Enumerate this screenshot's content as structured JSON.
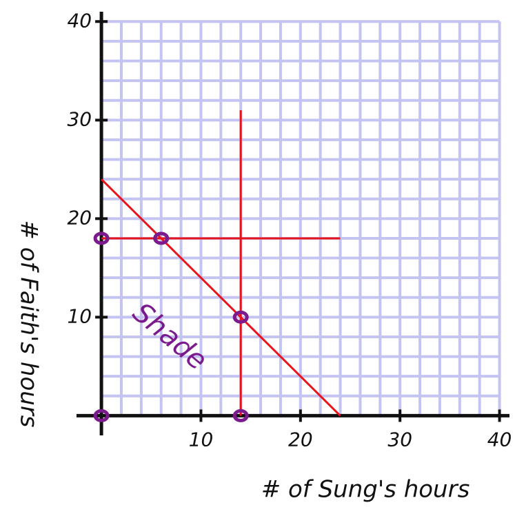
{
  "chart_data": {
    "type": "line",
    "xlabel": "# of Sung's hours",
    "ylabel": "# of Faith's hours",
    "annotation": "Shade",
    "xlim": [
      -2.5,
      41
    ],
    "ylim": [
      -2,
      41
    ],
    "xticks": [
      10,
      20,
      30,
      40
    ],
    "yticks": [
      10,
      20,
      30,
      40
    ],
    "grid": true,
    "grid_range": [
      0,
      40
    ],
    "minor_grid_step": 2,
    "series": [
      {
        "color": "#e8141c",
        "x": [
          0,
          24
        ],
        "values": [
          24,
          0
        ]
      },
      {
        "color": "#e8141c",
        "x": [
          14,
          14
        ],
        "values": [
          0,
          31
        ]
      },
      {
        "color": "#e8141c",
        "x": [
          0,
          24
        ],
        "values": [
          18,
          18
        ]
      },
      {
        "type": "scatter",
        "color": "#7b1a8c",
        "x": [
          0,
          0,
          6,
          14,
          14
        ],
        "values": [
          0,
          18,
          18,
          10,
          0
        ]
      }
    ]
  }
}
